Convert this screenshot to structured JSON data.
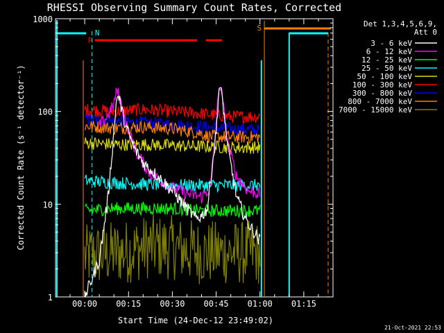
{
  "chart_data": {
    "type": "line",
    "title": "RHESSI Observing Summary Count Rates, Corrected",
    "xlabel": "Start Time (24-Dec-12 23:49:02)",
    "ylabel": "Corrected Count Rate (s⁻¹ detector⁻¹)",
    "y_scale": "log",
    "ylim": [
      1,
      1000
    ],
    "xlim_minutes": [
      -10,
      85
    ],
    "x_tick_labels": [
      "00:00",
      "00:15",
      "00:30",
      "00:45",
      "01:00",
      "01:15"
    ],
    "x_tick_minutes": [
      0,
      15,
      30,
      45,
      60,
      75
    ],
    "y_tick_labels": [
      "1",
      "10",
      "100",
      "1000"
    ],
    "y_tick_values": [
      1,
      10,
      100,
      1000
    ],
    "legend_header": [
      "Det 1,3,4,5,6,9,",
      "Att 0"
    ],
    "series": [
      {
        "name": "3 - 6 keV",
        "color": "#ffffff",
        "keys": [
          [
            0,
            1.0
          ],
          [
            5,
            2.5
          ],
          [
            8,
            12
          ],
          [
            10,
            60
          ],
          [
            11,
            150
          ],
          [
            12,
            130
          ],
          [
            14,
            70
          ],
          [
            17,
            40
          ],
          [
            20,
            28
          ],
          [
            25,
            20
          ],
          [
            30,
            14
          ],
          [
            35,
            9
          ],
          [
            38,
            7
          ],
          [
            40,
            7.5
          ],
          [
            42,
            9
          ],
          [
            45,
            60
          ],
          [
            46,
            180
          ],
          [
            47,
            150
          ],
          [
            49,
            40
          ],
          [
            52,
            12
          ],
          [
            55,
            7
          ],
          [
            57,
            5.5
          ],
          [
            59,
            4.5
          ],
          [
            60,
            4
          ]
        ]
      },
      {
        "name": "6 - 12 keV",
        "color": "#ff00ff",
        "keys": [
          [
            5,
            70
          ],
          [
            8,
            90
          ],
          [
            10,
            120
          ],
          [
            11,
            170
          ],
          [
            12,
            140
          ],
          [
            15,
            60
          ],
          [
            18,
            35
          ],
          [
            22,
            22
          ],
          [
            26,
            18
          ],
          [
            30,
            15
          ],
          [
            35,
            13
          ],
          [
            40,
            12
          ],
          [
            43,
            15
          ],
          [
            45,
            70
          ],
          [
            46,
            200
          ],
          [
            47,
            150
          ],
          [
            49,
            45
          ],
          [
            52,
            20
          ],
          [
            56,
            14
          ],
          [
            60,
            13
          ]
        ]
      },
      {
        "name": "12 - 25 keV",
        "color": "#00ff00",
        "keys": [
          [
            0,
            8.5
          ],
          [
            10,
            9
          ],
          [
            20,
            9
          ],
          [
            30,
            9
          ],
          [
            40,
            8.5
          ],
          [
            50,
            8.5
          ],
          [
            60,
            8.5
          ]
        ]
      },
      {
        "name": "25 - 50 keV",
        "color": "#00ffff",
        "keys": [
          [
            0,
            18
          ],
          [
            10,
            17
          ],
          [
            20,
            16.5
          ],
          [
            30,
            16
          ],
          [
            40,
            16
          ],
          [
            50,
            16
          ],
          [
            60,
            16
          ]
        ]
      },
      {
        "name": "50 - 100 keV",
        "color": "#dddd00",
        "keys": [
          [
            0,
            46
          ],
          [
            10,
            44
          ],
          [
            20,
            44
          ],
          [
            30,
            43
          ],
          [
            40,
            42
          ],
          [
            50,
            41
          ],
          [
            60,
            41
          ]
        ]
      },
      {
        "name": "100 - 300 keV",
        "color": "#ff0000",
        "keys": [
          [
            0,
            105
          ],
          [
            10,
            100
          ],
          [
            20,
            105
          ],
          [
            30,
            100
          ],
          [
            40,
            95
          ],
          [
            50,
            88
          ],
          [
            60,
            88
          ]
        ]
      },
      {
        "name": "300 - 800 keV",
        "color": "#0000ff",
        "keys": [
          [
            0,
            82
          ],
          [
            10,
            78
          ],
          [
            20,
            75
          ],
          [
            30,
            72
          ],
          [
            40,
            68
          ],
          [
            50,
            65
          ],
          [
            60,
            63
          ]
        ]
      },
      {
        "name": "800 - 7000 keV",
        "color": "#ff8000",
        "keys": [
          [
            0,
            70
          ],
          [
            10,
            66
          ],
          [
            20,
            68
          ],
          [
            30,
            65
          ],
          [
            40,
            58
          ],
          [
            42,
            54
          ],
          [
            50,
            53
          ],
          [
            60,
            53
          ]
        ]
      },
      {
        "name": "7000 - 15000 keV",
        "color": "#808000",
        "keys": [
          [
            0,
            2.7
          ],
          [
            10,
            3.0
          ],
          [
            15,
            3.1
          ],
          [
            22,
            3.5
          ],
          [
            30,
            3.4
          ],
          [
            35,
            3.2
          ],
          [
            40,
            3.0
          ],
          [
            50,
            3.0
          ],
          [
            60,
            3.0
          ]
        ]
      }
    ],
    "markers": [
      {
        "label": "N",
        "color": "#00ffff"
      },
      {
        "label": "F",
        "color": "#ff0000"
      },
      {
        "label": "S",
        "color": "#ff8000"
      }
    ]
  },
  "footer_date": "21-Oct-2021 22:53"
}
